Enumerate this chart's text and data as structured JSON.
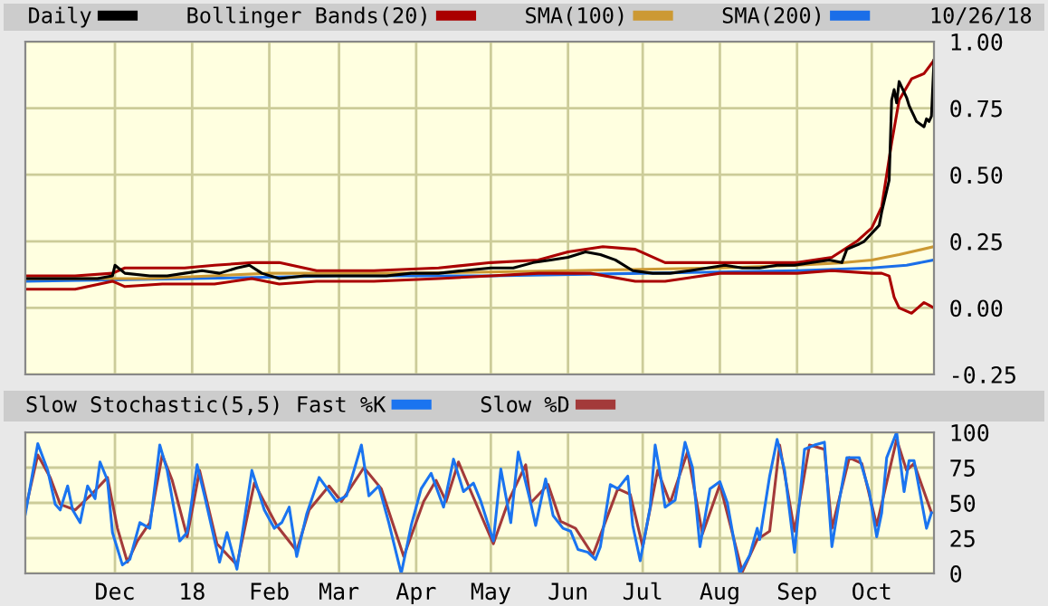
{
  "chart_data": [
    {
      "type": "line",
      "annotations": [
        "10/26/18"
      ],
      "legend": "top",
      "grid": true,
      "tick_labels": "y",
      "marker": "none",
      "line_style": "solid",
      "xlim": [
        "2017-10-26",
        "2018-10-26"
      ],
      "ylim": [
        -0.25,
        1.0
      ],
      "xticks": [
        {
          "value": "2017-12-01",
          "label": null
        },
        {
          "value": "2018-01-01",
          "label": null
        },
        {
          "value": "2018-02-01",
          "label": null
        },
        {
          "value": "2018-03-01",
          "label": null
        },
        {
          "value": "2018-04-01",
          "label": null
        },
        {
          "value": "2018-05-01",
          "label": null
        },
        {
          "value": "2018-06-01",
          "label": null
        },
        {
          "value": "2018-07-01",
          "label": null
        },
        {
          "value": "2018-08-01",
          "label": null
        },
        {
          "value": "2018-09-01",
          "label": null
        },
        {
          "value": "2018-10-01",
          "label": null
        }
      ],
      "yticks": [
        {
          "value": -0.25,
          "label": "-0.25"
        },
        {
          "value": 0,
          "label": "0.00"
        },
        {
          "value": 0.25,
          "label": "0.25"
        },
        {
          "value": 0.5,
          "label": "0.50"
        },
        {
          "value": 0.75,
          "label": "0.75"
        },
        {
          "value": 1.0,
          "label": "1.00"
        }
      ],
      "series": [
        {
          "name": "SMA(200)",
          "color": "#1a6ee8",
          "x": [
            "2017-10-26",
            "2018-01-01",
            "2018-03-01",
            "2018-05-01",
            "2018-07-01",
            "2018-09-01",
            "2018-10-01",
            "2018-10-15",
            "2018-10-26"
          ],
          "values": [
            0.1,
            0.11,
            0.12,
            0.12,
            0.13,
            0.14,
            0.15,
            0.16,
            0.18
          ]
        },
        {
          "name": "SMA(100)",
          "color": "#cc9933",
          "x": [
            "2017-10-26",
            "2017-12-15",
            "2018-02-01",
            "2018-04-01",
            "2018-06-01",
            "2018-08-01",
            "2018-09-01",
            "2018-09-20",
            "2018-10-01",
            "2018-10-12",
            "2018-10-26"
          ],
          "values": [
            0.11,
            0.11,
            0.13,
            0.13,
            0.14,
            0.15,
            0.16,
            0.17,
            0.18,
            0.2,
            0.23
          ]
        },
        {
          "name": "Bollinger Bands(20)",
          "color": "#aa0000",
          "x": [
            "2017-10-26",
            "2017-11-15",
            "2017-11-30",
            "2017-12-05",
            "2017-12-29",
            "2018-01-10",
            "2018-01-25",
            "2018-02-05",
            "2018-02-20",
            "2018-03-15",
            "2018-04-10",
            "2018-05-01",
            "2018-05-20",
            "2018-06-01",
            "2018-06-15",
            "2018-06-28",
            "2018-07-10",
            "2018-08-01",
            "2018-09-01",
            "2018-09-15",
            "2018-09-25",
            "2018-10-01",
            "2018-10-05",
            "2018-10-09",
            "2018-10-12",
            "2018-10-17",
            "2018-10-22",
            "2018-10-26"
          ],
          "values": [
            0.12,
            0.12,
            0.13,
            0.15,
            0.15,
            0.16,
            0.17,
            0.17,
            0.14,
            0.14,
            0.15,
            0.17,
            0.18,
            0.21,
            0.23,
            0.22,
            0.17,
            0.17,
            0.17,
            0.19,
            0.25,
            0.3,
            0.38,
            0.62,
            0.78,
            0.86,
            0.88,
            0.93
          ]
        },
        {
          "color": "#aa0000",
          "x": [
            "2017-10-26",
            "2017-11-15",
            "2017-11-30",
            "2017-12-05",
            "2017-12-20",
            "2018-01-10",
            "2018-01-25",
            "2018-02-05",
            "2018-02-20",
            "2018-03-15",
            "2018-04-10",
            "2018-05-01",
            "2018-05-20",
            "2018-06-10",
            "2018-06-28",
            "2018-07-10",
            "2018-08-01",
            "2018-09-01",
            "2018-09-15",
            "2018-10-01",
            "2018-10-05",
            "2018-10-08",
            "2018-10-10",
            "2018-10-12",
            "2018-10-17",
            "2018-10-22",
            "2018-10-24",
            "2018-10-26"
          ],
          "values": [
            0.07,
            0.07,
            0.1,
            0.08,
            0.09,
            0.09,
            0.11,
            0.09,
            0.1,
            0.1,
            0.11,
            0.12,
            0.13,
            0.13,
            0.1,
            0.1,
            0.13,
            0.13,
            0.14,
            0.13,
            0.13,
            0.12,
            0.04,
            0.0,
            -0.02,
            0.02,
            0.01,
            0.0
          ]
        },
        {
          "name": "Daily",
          "color": "#000000",
          "x": [
            "2017-10-26",
            "2017-11-10",
            "2017-11-24",
            "2017-11-30",
            "2017-12-01",
            "2017-12-05",
            "2017-12-15",
            "2017-12-22",
            "2017-12-29",
            "2018-01-05",
            "2018-01-12",
            "2018-01-19",
            "2018-01-24",
            "2018-01-29",
            "2018-02-05",
            "2018-02-15",
            "2018-02-26",
            "2018-03-08",
            "2018-03-20",
            "2018-03-30",
            "2018-04-10",
            "2018-04-20",
            "2018-05-01",
            "2018-05-10",
            "2018-05-18",
            "2018-05-25",
            "2018-06-01",
            "2018-06-08",
            "2018-06-14",
            "2018-06-20",
            "2018-06-27",
            "2018-07-05",
            "2018-07-12",
            "2018-07-20",
            "2018-07-27",
            "2018-08-03",
            "2018-08-10",
            "2018-08-17",
            "2018-08-24",
            "2018-08-31",
            "2018-09-07",
            "2018-09-14",
            "2018-09-19",
            "2018-09-21",
            "2018-09-26",
            "2018-09-28",
            "2018-10-02",
            "2018-10-04",
            "2018-10-05",
            "2018-10-08",
            "2018-10-09",
            "2018-10-10",
            "2018-10-11",
            "2018-10-12",
            "2018-10-15",
            "2018-10-16",
            "2018-10-17",
            "2018-10-18",
            "2018-10-19",
            "2018-10-22",
            "2018-10-23",
            "2018-10-24",
            "2018-10-25",
            "2018-10-26"
          ],
          "values": [
            0.11,
            0.11,
            0.11,
            0.12,
            0.16,
            0.13,
            0.12,
            0.12,
            0.13,
            0.14,
            0.13,
            0.15,
            0.16,
            0.13,
            0.11,
            0.12,
            0.12,
            0.12,
            0.12,
            0.13,
            0.13,
            0.14,
            0.15,
            0.15,
            0.17,
            0.18,
            0.19,
            0.21,
            0.2,
            0.18,
            0.14,
            0.13,
            0.13,
            0.14,
            0.15,
            0.16,
            0.15,
            0.15,
            0.16,
            0.16,
            0.17,
            0.18,
            0.17,
            0.22,
            0.24,
            0.25,
            0.29,
            0.31,
            0.36,
            0.48,
            0.78,
            0.82,
            0.77,
            0.85,
            0.79,
            0.76,
            0.74,
            0.72,
            0.7,
            0.68,
            0.71,
            0.7,
            0.72,
            0.93
          ]
        }
      ]
    },
    {
      "type": "line",
      "title": "Slow Stochastic(5,5)",
      "legend": "top",
      "grid": true,
      "marker": "none",
      "line_style": "solid",
      "xlim": [
        "2017-10-26",
        "2018-10-26"
      ],
      "ylim": [
        0,
        100
      ],
      "xticks": [
        {
          "value": "2017-12-01",
          "label": "Dec"
        },
        {
          "value": "2018-01-01",
          "label": "18"
        },
        {
          "value": "2018-02-01",
          "label": "Feb"
        },
        {
          "value": "2018-03-01",
          "label": "Mar"
        },
        {
          "value": "2018-04-01",
          "label": "Apr"
        },
        {
          "value": "2018-05-01",
          "label": "May"
        },
        {
          "value": "2018-06-01",
          "label": "Jun"
        },
        {
          "value": "2018-07-01",
          "label": "Jul"
        },
        {
          "value": "2018-08-01",
          "label": "Aug"
        },
        {
          "value": "2018-09-01",
          "label": "Sep"
        },
        {
          "value": "2018-10-01",
          "label": "Oct"
        }
      ],
      "yticks": [
        0,
        25,
        50,
        75,
        100
      ],
      "series": [
        {
          "name": "Slow %D",
          "color": "#a33a3a",
          "x": [
            "2017-10-26",
            "2017-10-31",
            "2017-11-05",
            "2017-11-09",
            "2017-11-15",
            "2017-11-21",
            "2017-11-28",
            "2017-12-02",
            "2017-12-06",
            "2017-12-10",
            "2017-12-15",
            "2017-12-20",
            "2017-12-24",
            "2017-12-30",
            "2018-01-04",
            "2018-01-11",
            "2018-01-19",
            "2018-01-26",
            "2018-02-04",
            "2018-02-12",
            "2018-02-17",
            "2018-02-25",
            "2018-03-02",
            "2018-03-11",
            "2018-03-18",
            "2018-03-27",
            "2018-04-04",
            "2018-04-09",
            "2018-04-13",
            "2018-04-18",
            "2018-04-23",
            "2018-05-02",
            "2018-05-08",
            "2018-05-15",
            "2018-05-17",
            "2018-05-24",
            "2018-05-29",
            "2018-06-04",
            "2018-06-11",
            "2018-06-21",
            "2018-06-26",
            "2018-07-01",
            "2018-07-07",
            "2018-07-12",
            "2018-07-19",
            "2018-07-25",
            "2018-08-01",
            "2018-08-10",
            "2018-08-16",
            "2018-08-21",
            "2018-08-25",
            "2018-08-31",
            "2018-09-06",
            "2018-09-12",
            "2018-09-15",
            "2018-09-22",
            "2018-09-27",
            "2018-10-03",
            "2018-10-11",
            "2018-10-15",
            "2018-10-18",
            "2018-10-25"
          ],
          "values": [
            45,
            84,
            68,
            49,
            45,
            55,
            68,
            32,
            8,
            23,
            36,
            84,
            66,
            26,
            73,
            21,
            6,
            64,
            34,
            16,
            45,
            62,
            51,
            75,
            60,
            12,
            51,
            66,
            51,
            79,
            58,
            21,
            51,
            77,
            50,
            63,
            37,
            32,
            13,
            60,
            56,
            19,
            73,
            50,
            86,
            28,
            63,
            1,
            24,
            30,
            91,
            30,
            91,
            88,
            32,
            82,
            78,
            34,
            95,
            73,
            78,
            43
          ]
        },
        {
          "name": "Fast %K",
          "color": "#1a74f0",
          "x": [
            "2017-10-26",
            "2017-10-31",
            "2017-11-04",
            "2017-11-07",
            "2017-11-09",
            "2017-11-12",
            "2017-11-14",
            "2017-11-17",
            "2017-11-20",
            "2017-11-23",
            "2017-11-25",
            "2017-11-28",
            "2017-11-30",
            "2017-12-04",
            "2017-12-07",
            "2017-12-11",
            "2017-12-15",
            "2017-12-19",
            "2017-12-22",
            "2017-12-27",
            "2017-12-30",
            "2018-01-03",
            "2018-01-06",
            "2018-01-12",
            "2018-01-15",
            "2018-01-19",
            "2018-01-25",
            "2018-01-30",
            "2018-02-03",
            "2018-02-06",
            "2018-02-09",
            "2018-02-12",
            "2018-02-16",
            "2018-02-21",
            "2018-02-28",
            "2018-03-04",
            "2018-03-10",
            "2018-03-13",
            "2018-03-17",
            "2018-03-21",
            "2018-03-26",
            "2018-03-30",
            "2018-04-03",
            "2018-04-07",
            "2018-04-12",
            "2018-04-16",
            "2018-04-20",
            "2018-04-24",
            "2018-04-27",
            "2018-05-02",
            "2018-05-05",
            "2018-05-09",
            "2018-05-12",
            "2018-05-17",
            "2018-05-19",
            "2018-05-23",
            "2018-05-26",
            "2018-05-30",
            "2018-06-02",
            "2018-06-05",
            "2018-06-09",
            "2018-06-12",
            "2018-06-14",
            "2018-06-18",
            "2018-06-21",
            "2018-06-25",
            "2018-06-27",
            "2018-06-30",
            "2018-07-04",
            "2018-07-06",
            "2018-07-08",
            "2018-07-10",
            "2018-07-14",
            "2018-07-18",
            "2018-07-21",
            "2018-07-24",
            "2018-07-28",
            "2018-08-01",
            "2018-08-04",
            "2018-08-09",
            "2018-08-13",
            "2018-08-16",
            "2018-08-17",
            "2018-08-21",
            "2018-08-24",
            "2018-08-27",
            "2018-08-31",
            "2018-09-04",
            "2018-09-08",
            "2018-09-12",
            "2018-09-15",
            "2018-09-18",
            "2018-09-21",
            "2018-09-26",
            "2018-09-30",
            "2018-10-03",
            "2018-10-05",
            "2018-10-07",
            "2018-10-11",
            "2018-10-14",
            "2018-10-16",
            "2018-10-18",
            "2018-10-23",
            "2018-10-25"
          ],
          "values": [
            42,
            92,
            73,
            49,
            45,
            62,
            45,
            36,
            62,
            53,
            79,
            66,
            29,
            6,
            10,
            36,
            32,
            91,
            73,
            23,
            29,
            77,
            55,
            8,
            29,
            3,
            73,
            45,
            32,
            36,
            47,
            12,
            42,
            68,
            51,
            55,
            91,
            55,
            62,
            36,
            0,
            34,
            60,
            71,
            47,
            81,
            58,
            64,
            51,
            23,
            74,
            36,
            86,
            50,
            34,
            67,
            41,
            32,
            30,
            17,
            15,
            10,
            19,
            63,
            60,
            69,
            34,
            9,
            47,
            91,
            71,
            47,
            52,
            93,
            75,
            19,
            60,
            65,
            50,
            0,
            13,
            32,
            24,
            69,
            95,
            73,
            15,
            88,
            91,
            93,
            19,
            52,
            82,
            82,
            58,
            26,
            43,
            82,
            100,
            58,
            80,
            80,
            32,
            43
          ]
        }
      ]
    }
  ]
}
